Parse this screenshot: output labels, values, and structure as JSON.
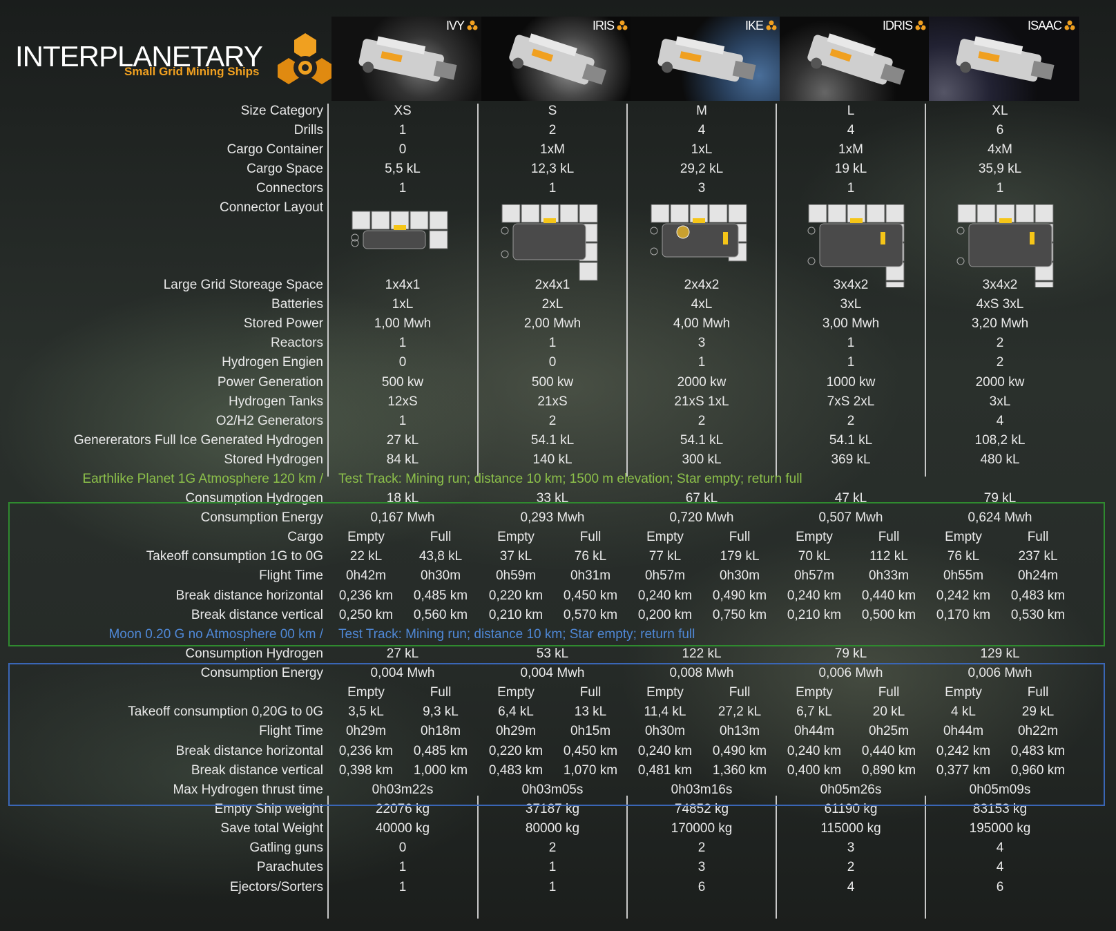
{
  "header": {
    "title": "INTERPLANETARY",
    "subtitle": "Small Grid Mining Ships"
  },
  "ships": [
    {
      "name": "IVY"
    },
    {
      "name": "IRIS"
    },
    {
      "name": "IKE"
    },
    {
      "name": "IDRIS"
    },
    {
      "name": "ISAAC"
    }
  ],
  "rows_top": [
    {
      "label": "Size Category",
      "values": [
        "XS",
        "S",
        "M",
        "L",
        "XL"
      ]
    },
    {
      "label": "Drills",
      "values": [
        "1",
        "2",
        "4",
        "4",
        "6"
      ]
    },
    {
      "label": "Cargo Container",
      "values": [
        "0",
        "1xM",
        "1xL",
        "1xM",
        "4xM"
      ]
    },
    {
      "label": "Cargo Space",
      "values": [
        "5,5 kL",
        "12,3 kL",
        "29,2 kL",
        "19 kL",
        "35,9 kL"
      ]
    },
    {
      "label": "Connectors",
      "values": [
        "1",
        "1",
        "3",
        "1",
        "1"
      ]
    }
  ],
  "connector_layout_label": "Connector Layout",
  "rows_mid": [
    {
      "label": "Large Grid Storeage Space",
      "values": [
        "1x4x1",
        "2x4x1",
        "2x4x2",
        "3x4x2",
        "3x4x2"
      ]
    },
    {
      "label": "Batteries",
      "values": [
        "1xL",
        "2xL",
        "4xL",
        "3xL",
        "4xS 3xL"
      ]
    },
    {
      "label": "Stored Power",
      "values": [
        "1,00 Mwh",
        "2,00 Mwh",
        "4,00 Mwh",
        "3,00 Mwh",
        "3,20 Mwh"
      ]
    },
    {
      "label": "Reactors",
      "values": [
        "1",
        "1",
        "3",
        "1",
        "2"
      ]
    },
    {
      "label": "Hydrogen Engien",
      "values": [
        "0",
        "0",
        "1",
        "1",
        "2"
      ]
    },
    {
      "label": "Power Generation",
      "values": [
        "500 kw",
        "500 kw",
        "2000 kw",
        "1000 kw",
        "2000 kw"
      ]
    },
    {
      "label": "Hydrogen Tanks",
      "values": [
        "12xS",
        "21xS",
        "21xS 1xL",
        "7xS 2xL",
        "3xL"
      ]
    },
    {
      "label": "O2/H2 Generators",
      "values": [
        "1",
        "2",
        "2",
        "2",
        "4"
      ]
    },
    {
      "label": "Genererators Full Ice Generated Hydrogen",
      "values": [
        "27 kL",
        "54.1 kL",
        "54.1 kL",
        "54.1 kL",
        "108,2 kL"
      ]
    },
    {
      "label": "Stored Hydrogen",
      "values": [
        "84 kL",
        "140 kL",
        "300 kL",
        "369 kL",
        "480 kL"
      ]
    }
  ],
  "earth": {
    "heading_left": "Earthlike Planet 1G Atmosphere 120 km /",
    "heading_right": "Test Track: Mining run; distance 10 km; 1500 m elevation; Star empty; return full",
    "single_rows": [
      {
        "label": "Consumption Hydrogen",
        "values": [
          "18 kL",
          "33 kL",
          "67 kL",
          "47 kL",
          "79 kL"
        ]
      },
      {
        "label": "Consumption Energy",
        "values": [
          "0,167 Mwh",
          "0,293 Mwh",
          "0,720 Mwh",
          "0,507 Mwh",
          "0,624 Mwh"
        ]
      }
    ],
    "cargo_label": "Cargo",
    "empty_label": "Empty",
    "full_label": "Full",
    "pair_rows": [
      {
        "label": "Takeoff consumption 1G to 0G",
        "values": [
          "22 kL",
          "43,8 kL",
          "37 kL",
          "76 kL",
          "77 kL",
          "179 kL",
          "70 kL",
          "112 kL",
          "76 kL",
          "237 kL"
        ]
      },
      {
        "label": "Flight Time",
        "values": [
          "0h42m",
          "0h30m",
          "0h59m",
          "0h31m",
          "0h57m",
          "0h30m",
          "0h57m",
          "0h33m",
          "0h55m",
          "0h24m"
        ]
      },
      {
        "label": "Break distance horizontal",
        "values": [
          "0,236 km",
          "0,485 km",
          "0,220 km",
          "0,450 km",
          "0,240 km",
          "0,490 km",
          "0,240 km",
          "0,440 km",
          "0,242 km",
          "0,483 km"
        ]
      },
      {
        "label": "Break distance vertical",
        "values": [
          "0,250 km",
          "0,560 km",
          "0,210 km",
          "0,570 km",
          "0,200 km",
          "0,750 km",
          "0,210 km",
          "0,500 km",
          "0,170 km",
          "0,530 km"
        ]
      }
    ]
  },
  "moon": {
    "heading_left": "Moon 0.20 G no Atmosphere 00 km /",
    "heading_right": "Test Track: Mining run; distance 10 km; Star empty; return full",
    "single_rows": [
      {
        "label": "Consumption Hydrogen",
        "values": [
          "27 kL",
          "53 kL",
          "122 kL",
          "79 kL",
          "129 kL"
        ]
      },
      {
        "label": "Consumption Energy",
        "values": [
          "0,004 Mwh",
          "0,004 Mwh",
          "0,008 Mwh",
          "0,006 Mwh",
          "0,006 Mwh"
        ]
      }
    ],
    "empty_label": "Empty",
    "full_label": "Full",
    "pair_rows": [
      {
        "label": "Takeoff consumption 0,20G to 0G",
        "values": [
          "3,5 kL",
          "9,3 kL",
          "6,4 kL",
          "13 kL",
          "11,4 kL",
          "27,2 kL",
          "6,7 kL",
          "20 kL",
          "4 kL",
          "29 kL"
        ]
      },
      {
        "label": "Flight Time",
        "values": [
          "0h29m",
          "0h18m",
          "0h29m",
          "0h15m",
          "0h30m",
          "0h13m",
          "0h44m",
          "0h25m",
          "0h44m",
          "0h22m"
        ]
      },
      {
        "label": "Break distance horizontal",
        "values": [
          "0,236 km",
          "0,485 km",
          "0,220 km",
          "0,450 km",
          "0,240 km",
          "0,490 km",
          "0,240 km",
          "0,440 km",
          "0,242 km",
          "0,483 km"
        ]
      },
      {
        "label": "Break distance vertical",
        "values": [
          "0,398 km",
          "1,000 km",
          "0,483 km",
          "1,070 km",
          "0,481 km",
          "1,360 km",
          "0,400 km",
          "0,890 km",
          "0,377 km",
          "0,960 km"
        ]
      }
    ]
  },
  "rows_bottom": [
    {
      "label": "Max Hydrogen thrust time",
      "values": [
        "0h03m22s",
        "0h03m05s",
        "0h03m16s",
        "0h05m26s",
        "0h05m09s"
      ]
    },
    {
      "label": "Empty Ship weight",
      "values": [
        "22076 kg",
        "37187 kg",
        "74852 kg",
        "61190 kg",
        "83153 kg"
      ]
    },
    {
      "label": "Save total Weight",
      "values": [
        "40000 kg",
        "80000 kg",
        "170000 kg",
        "115000 kg",
        "195000 kg"
      ]
    },
    {
      "label": "Gatling guns",
      "values": [
        "0",
        "2",
        "2",
        "3",
        "4"
      ]
    },
    {
      "label": "Parachutes",
      "values": [
        "1",
        "1",
        "3",
        "2",
        "4"
      ]
    },
    {
      "label": "Ejectors/Sorters",
      "values": [
        "1",
        "1",
        "6",
        "4",
        "6"
      ]
    }
  ],
  "colors": {
    "accent_orange": "#f0a020",
    "section_green": "#8cc04a",
    "section_blue": "#4f88d6",
    "box_green": "#2f8a2f",
    "box_blue": "#3a66b6"
  },
  "icons": [
    "logo-emblem-icon",
    "ship-badge-icon"
  ]
}
